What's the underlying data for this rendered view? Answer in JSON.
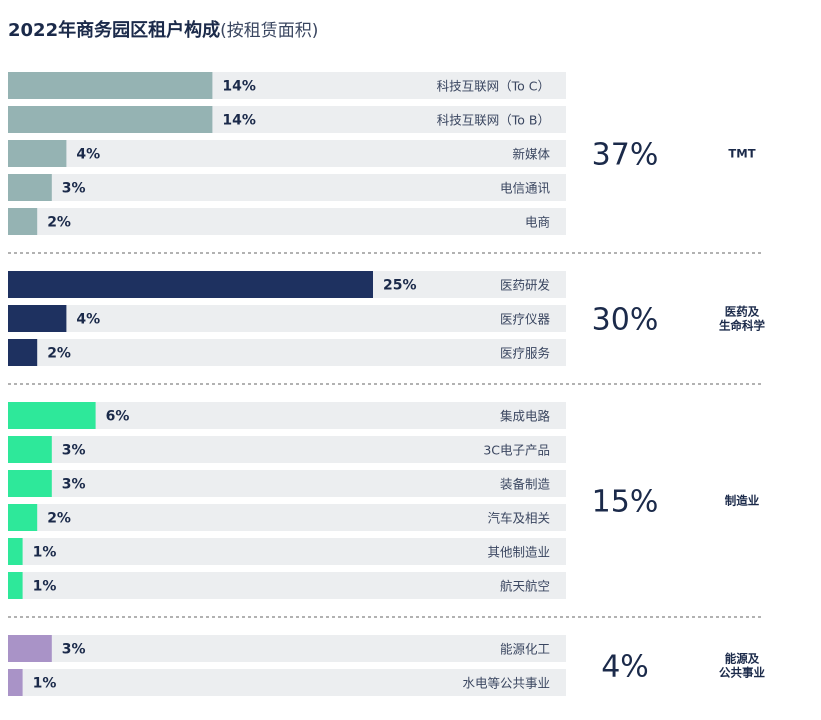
{
  "title": "2022年商务园区租户构成",
  "subtitle": "(按租赁面积)",
  "chart_data": {
    "type": "bar",
    "orientation": "horizontal",
    "title": "2022年商务园区租户构成",
    "subtitle": "(按租赁面积)",
    "xlim": [
      0,
      40
    ],
    "unit": "%",
    "groups": [
      {
        "name": [
          "TMT"
        ],
        "total": "37%",
        "color": "#95b3b3",
        "bars": [
          {
            "label": "科技互联网（To C）",
            "value": 14,
            "text": "14%"
          },
          {
            "label": "科技互联网（To B）",
            "value": 14,
            "text": "14%"
          },
          {
            "label": "新媒体",
            "value": 4,
            "text": "4%"
          },
          {
            "label": "电信通讯",
            "value": 3,
            "text": "3%"
          },
          {
            "label": "电商",
            "value": 2,
            "text": "2%"
          }
        ]
      },
      {
        "name": [
          "医药及",
          "生命科学"
        ],
        "total": "30%",
        "color": "#1e3160",
        "bars": [
          {
            "label": "医药研发",
            "value": 25,
            "text": "25%"
          },
          {
            "label": "医疗仪器",
            "value": 4,
            "text": "4%"
          },
          {
            "label": "医疗服务",
            "value": 2,
            "text": "2%"
          }
        ]
      },
      {
        "name": [
          "制造业"
        ],
        "total": "15%",
        "color": "#2ee89a",
        "bars": [
          {
            "label": "集成电路",
            "value": 6,
            "text": "6%"
          },
          {
            "label": "3C电子产品",
            "value": 3,
            "text": "3%"
          },
          {
            "label": "装备制造",
            "value": 3,
            "text": "3%"
          },
          {
            "label": "汽车及相关",
            "value": 2,
            "text": "2%"
          },
          {
            "label": "其他制造业",
            "value": 1,
            "text": "1%"
          },
          {
            "label": "航天航空",
            "value": 1,
            "text": "1%"
          }
        ]
      },
      {
        "name": [
          "能源及",
          "公共事业"
        ],
        "total": "4%",
        "color": "#a993c7",
        "bars": [
          {
            "label": "能源化工",
            "value": 3,
            "text": "3%"
          },
          {
            "label": "水电等公共事业",
            "value": 1,
            "text": "1%"
          }
        ]
      }
    ]
  }
}
